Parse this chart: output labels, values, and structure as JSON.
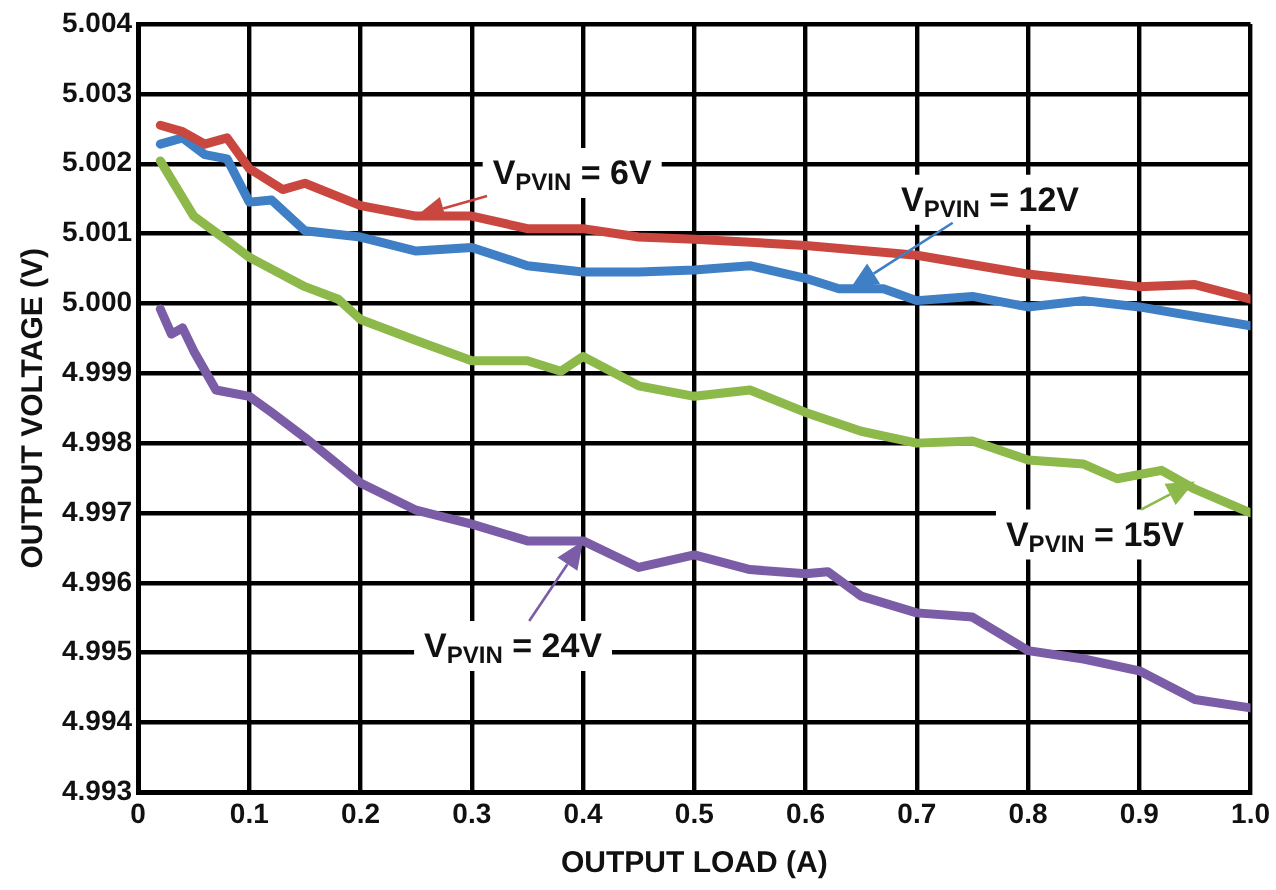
{
  "chart_data": {
    "type": "line",
    "xlabel": "OUTPUT LOAD (A)",
    "ylabel": "OUTPUT VOLTAGE (V)",
    "xlim": [
      0,
      1
    ],
    "xticks": [
      0,
      0.1,
      0.2,
      0.3,
      0.4,
      0.5,
      0.6,
      0.7,
      0.8,
      0.9,
      {
        "value": 1,
        "label": "1.0"
      }
    ],
    "ylim": [
      4.993,
      5.004
    ],
    "yticks": [
      4.993,
      4.994,
      4.995,
      4.996,
      4.997,
      4.998,
      4.999,
      {
        "value": 5,
        "label": "5.000"
      },
      5.001,
      5.002,
      5.003,
      5.004
    ],
    "grid": true,
    "legend": false,
    "marker": "none",
    "line_style": "solid",
    "series": [
      {
        "color": "#c9473f",
        "x": [
          0.02,
          0.04,
          0.06,
          0.08,
          0.1,
          0.13,
          0.15,
          0.2,
          0.25,
          0.3,
          0.35,
          0.4,
          0.45,
          0.5,
          0.6,
          0.7,
          0.8,
          0.9,
          0.95,
          1.0
        ],
        "values": [
          5.00255,
          5.00246,
          5.00228,
          5.00237,
          5.00193,
          5.00163,
          5.00172,
          5.0014,
          5.00125,
          5.00125,
          5.00107,
          5.00107,
          5.00095,
          5.00092,
          5.00083,
          5.00069,
          5.00042,
          5.00024,
          5.00027,
          5.00006
        ]
      },
      {
        "color": "#3f7fc5",
        "x": [
          0.02,
          0.04,
          0.06,
          0.08,
          0.1,
          0.12,
          0.15,
          0.2,
          0.25,
          0.3,
          0.35,
          0.4,
          0.45,
          0.5,
          0.55,
          0.6,
          0.63,
          0.67,
          0.7,
          0.75,
          0.8,
          0.85,
          0.9,
          1.0
        ],
        "values": [
          5.00228,
          5.00237,
          5.00213,
          5.00207,
          5.00145,
          5.00148,
          5.00104,
          5.00095,
          5.00075,
          5.0008,
          5.00054,
          5.00045,
          5.00045,
          5.00048,
          5.00054,
          5.00036,
          5.00021,
          5.00021,
          5.00004,
          5.0001,
          4.99995,
          5.00004,
          4.99995,
          4.99968
        ]
      },
      {
        "color": "#8db84a",
        "x": [
          0.02,
          0.05,
          0.08,
          0.1,
          0.15,
          0.18,
          0.2,
          0.25,
          0.3,
          0.35,
          0.38,
          0.4,
          0.45,
          0.5,
          0.55,
          0.6,
          0.65,
          0.7,
          0.75,
          0.8,
          0.85,
          0.88,
          0.92,
          0.95,
          1.0
        ],
        "values": [
          5.00204,
          5.00125,
          5.0009,
          5.00066,
          5.00024,
          5.00006,
          4.99977,
          4.99947,
          4.99918,
          4.99918,
          4.99903,
          4.99924,
          4.99882,
          4.99867,
          4.99876,
          4.99844,
          4.99817,
          4.998,
          4.99803,
          4.99776,
          4.9977,
          4.99749,
          4.99761,
          4.99734,
          4.997
        ]
      },
      {
        "color": "#7b5ca6",
        "x": [
          0.02,
          0.03,
          0.04,
          0.05,
          0.07,
          0.1,
          0.12,
          0.15,
          0.2,
          0.25,
          0.3,
          0.35,
          0.4,
          0.45,
          0.5,
          0.55,
          0.6,
          0.62,
          0.65,
          0.7,
          0.75,
          0.8,
          0.85,
          0.9,
          0.95,
          1.0
        ],
        "values": [
          4.99992,
          4.99956,
          4.99965,
          4.99932,
          4.99876,
          4.99867,
          4.99844,
          4.99808,
          4.99743,
          4.99704,
          4.99684,
          4.9966,
          4.9966,
          4.99622,
          4.9964,
          4.99619,
          4.99613,
          4.99616,
          4.99581,
          4.99557,
          4.99551,
          4.99503,
          4.99491,
          4.99474,
          4.99433,
          4.99421
        ]
      }
    ],
    "annotations": [
      {
        "text": "V$_{PVIN}$ = 6V",
        "x": 0.25,
        "y": 5.00125
      },
      {
        "text": "V$_{PVIN}$ = 12V",
        "x": 0.64,
        "y": 5.00021
      },
      {
        "text": "V$_{PVIN}$ = 15V",
        "x": 0.95,
        "y": 4.99745
      },
      {
        "text": "V$_{PVIN}$ = 24V",
        "x": 0.4,
        "y": 4.9966
      }
    ]
  }
}
